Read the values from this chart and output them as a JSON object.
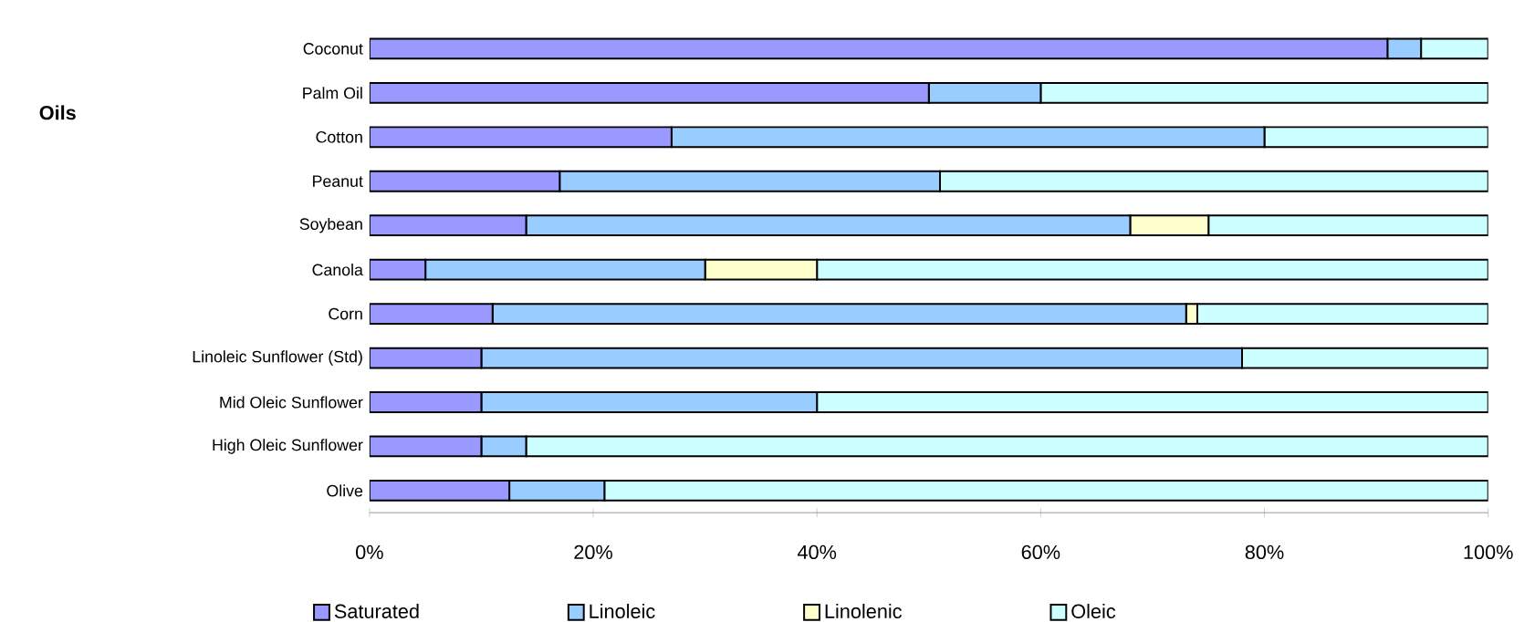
{
  "chart_data": {
    "type": "bar",
    "orientation": "horizontal",
    "stacked": true,
    "annotations": [
      "Oils"
    ],
    "categories": [
      "Coconut",
      "Palm Oil",
      "Cotton",
      "Peanut",
      "Soybean",
      "Canola",
      "Corn",
      "Linoleic Sunflower (Std)",
      "Mid Oleic Sunflower",
      "High Oleic Sunflower",
      "Olive"
    ],
    "series": [
      {
        "name": "Saturated",
        "color": "#9999ff",
        "values": [
          91,
          50,
          27,
          17,
          14,
          5,
          11,
          10,
          10,
          10,
          12.5
        ]
      },
      {
        "name": "Linoleic",
        "color": "#99ccff",
        "values": [
          3,
          10,
          53,
          34,
          54,
          25,
          62,
          68,
          30,
          4,
          8.5
        ]
      },
      {
        "name": "Linolenic",
        "color": "#ffffcc",
        "values": [
          0,
          0,
          0,
          0,
          7,
          10,
          1,
          0,
          0,
          0,
          0
        ]
      },
      {
        "name": "Oleic",
        "color": "#ccffff",
        "values": [
          6,
          40,
          20,
          49,
          25,
          60,
          26,
          22,
          60,
          86,
          79
        ]
      }
    ],
    "xlim": [
      0,
      100
    ],
    "xticks": [
      {
        "value": 0,
        "label": "0%"
      },
      {
        "value": 20,
        "label": "20%"
      },
      {
        "value": 40,
        "label": "40%"
      },
      {
        "value": 60,
        "label": "60%"
      },
      {
        "value": 80,
        "label": "80%"
      },
      {
        "value": 100,
        "label": "100%"
      }
    ],
    "legend": "bottom",
    "grid": false
  }
}
